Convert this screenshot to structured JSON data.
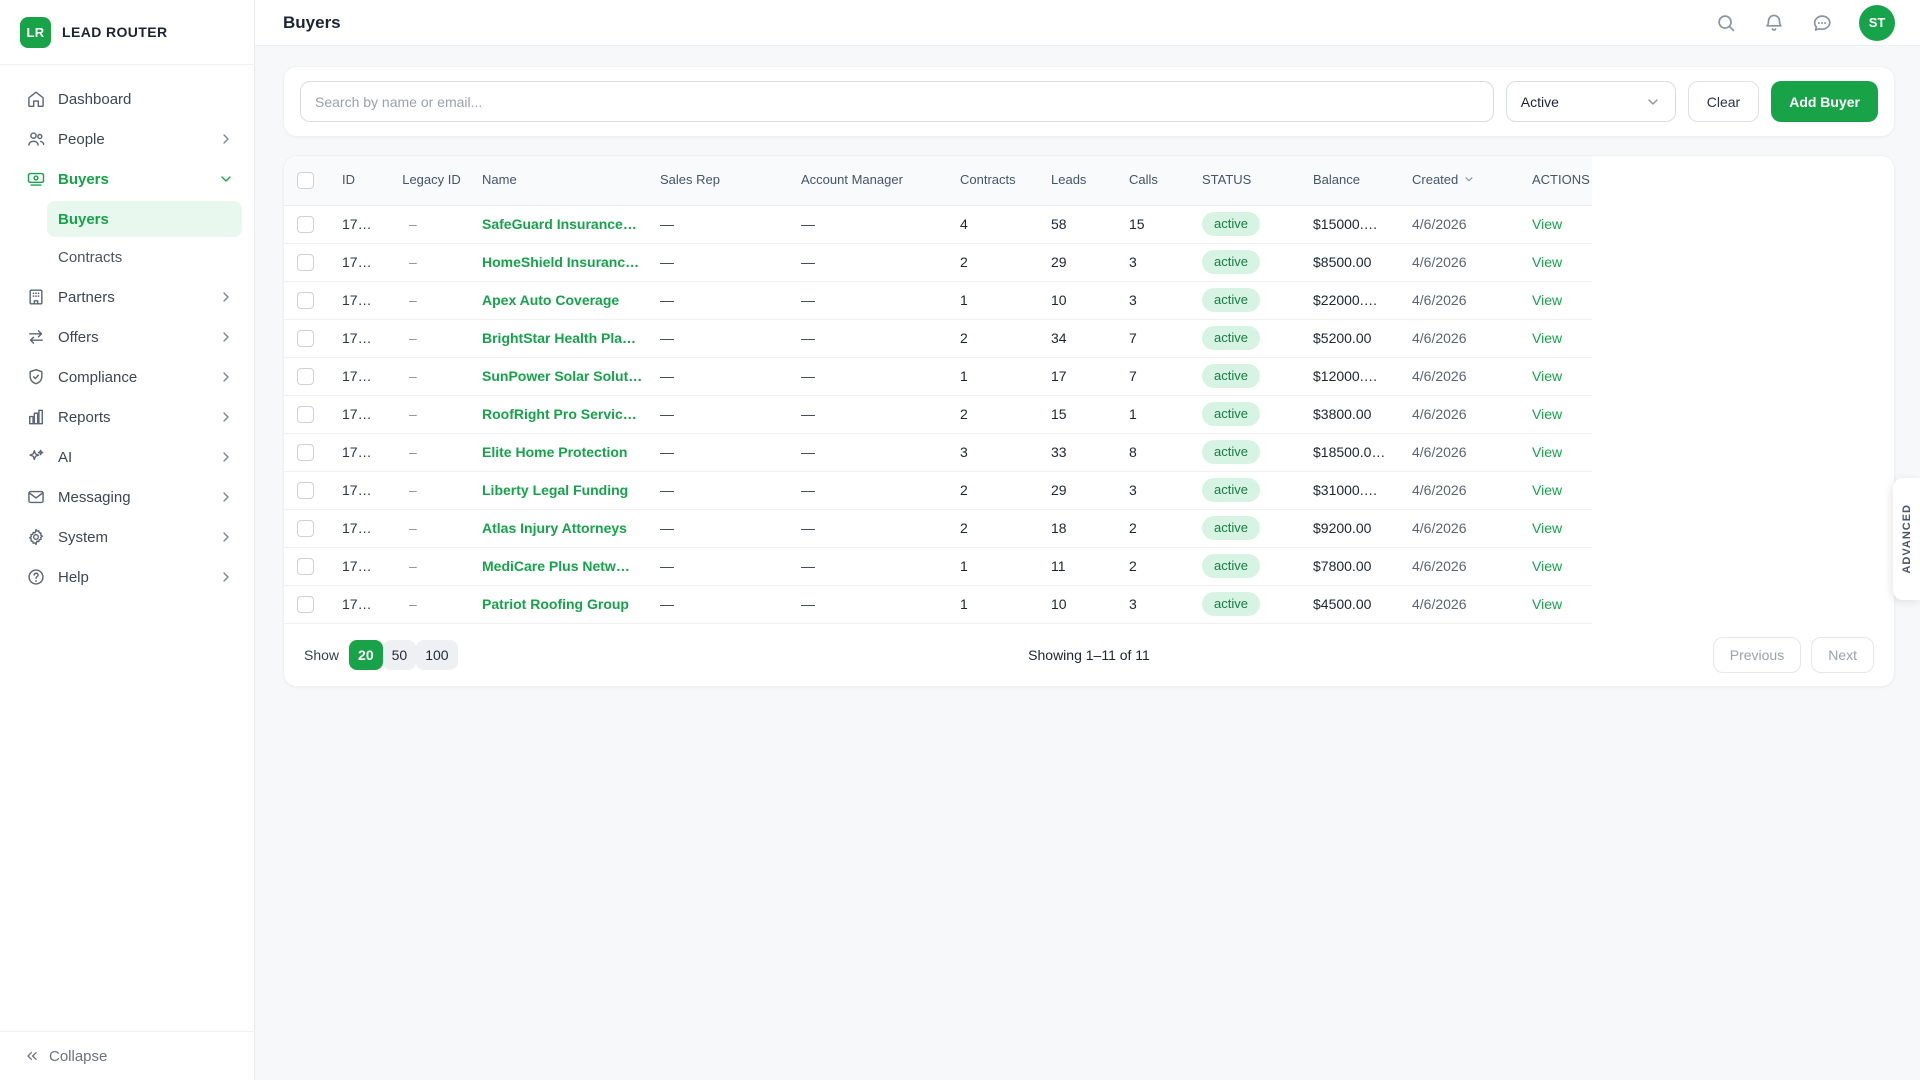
{
  "brand": {
    "logo": "LR",
    "name": "LEAD ROUTER"
  },
  "sidebar": {
    "items": [
      {
        "label": "Dashboard",
        "icon": "home",
        "chevron": "none",
        "active": false
      },
      {
        "label": "People",
        "icon": "users",
        "chevron": "right",
        "active": false
      },
      {
        "label": "Buyers",
        "icon": "cash",
        "chevron": "down",
        "active": true,
        "children": [
          {
            "label": "Buyers",
            "active": true
          },
          {
            "label": "Contracts",
            "active": false
          }
        ]
      },
      {
        "label": "Partners",
        "icon": "building",
        "chevron": "right",
        "active": false
      },
      {
        "label": "Offers",
        "icon": "arrows",
        "chevron": "right",
        "active": false
      },
      {
        "label": "Compliance",
        "icon": "shield",
        "chevron": "right",
        "active": false
      },
      {
        "label": "Reports",
        "icon": "chart",
        "chevron": "right",
        "active": false
      },
      {
        "label": "AI",
        "icon": "sparkles",
        "chevron": "right",
        "active": false
      },
      {
        "label": "Messaging",
        "icon": "mail",
        "chevron": "right",
        "active": false
      },
      {
        "label": "System",
        "icon": "gear",
        "chevron": "right",
        "active": false
      },
      {
        "label": "Help",
        "icon": "help",
        "chevron": "right",
        "active": false
      }
    ],
    "collapse_label": "Collapse"
  },
  "header": {
    "title": "Buyers",
    "avatar": "ST"
  },
  "filters": {
    "search_placeholder": "Search by name or email...",
    "status_value": "Active",
    "clear_label": "Clear",
    "add_buyer_label": "Add Buyer"
  },
  "table": {
    "columns": [
      "ID",
      "Legacy ID",
      "Name",
      "Sales Rep",
      "Account Manager",
      "Contracts",
      "Leads",
      "Calls",
      "STATUS",
      "Balance",
      "Created",
      "ACTIONS"
    ],
    "rows": [
      {
        "id": "17…",
        "legacy_id": "–",
        "name": "SafeGuard Insurance…",
        "sales_rep": "—",
        "account_manager": "—",
        "contracts": "4",
        "leads": "58",
        "calls": "15",
        "status": "active",
        "balance": "$15000.…",
        "created": "4/6/2026",
        "action": "View"
      },
      {
        "id": "17…",
        "legacy_id": "–",
        "name": "HomeShield Insuranc…",
        "sales_rep": "—",
        "account_manager": "—",
        "contracts": "2",
        "leads": "29",
        "calls": "3",
        "status": "active",
        "balance": "$8500.00",
        "created": "4/6/2026",
        "action": "View"
      },
      {
        "id": "17…",
        "legacy_id": "–",
        "name": "Apex Auto Coverage",
        "sales_rep": "—",
        "account_manager": "—",
        "contracts": "1",
        "leads": "10",
        "calls": "3",
        "status": "active",
        "balance": "$22000.…",
        "created": "4/6/2026",
        "action": "View"
      },
      {
        "id": "17…",
        "legacy_id": "–",
        "name": "BrightStar Health Pla…",
        "sales_rep": "—",
        "account_manager": "—",
        "contracts": "2",
        "leads": "34",
        "calls": "7",
        "status": "active",
        "balance": "$5200.00",
        "created": "4/6/2026",
        "action": "View"
      },
      {
        "id": "17…",
        "legacy_id": "–",
        "name": "SunPower Solar Solut…",
        "sales_rep": "—",
        "account_manager": "—",
        "contracts": "1",
        "leads": "17",
        "calls": "7",
        "status": "active",
        "balance": "$12000.…",
        "created": "4/6/2026",
        "action": "View"
      },
      {
        "id": "17…",
        "legacy_id": "–",
        "name": "RoofRight Pro Servic…",
        "sales_rep": "—",
        "account_manager": "—",
        "contracts": "2",
        "leads": "15",
        "calls": "1",
        "status": "active",
        "balance": "$3800.00",
        "created": "4/6/2026",
        "action": "View"
      },
      {
        "id": "17…",
        "legacy_id": "–",
        "name": "Elite Home Protection",
        "sales_rep": "—",
        "account_manager": "—",
        "contracts": "3",
        "leads": "33",
        "calls": "8",
        "status": "active",
        "balance": "$18500.0…",
        "created": "4/6/2026",
        "action": "View"
      },
      {
        "id": "17…",
        "legacy_id": "–",
        "name": "Liberty Legal Funding",
        "sales_rep": "—",
        "account_manager": "—",
        "contracts": "2",
        "leads": "29",
        "calls": "3",
        "status": "active",
        "balance": "$31000.…",
        "created": "4/6/2026",
        "action": "View"
      },
      {
        "id": "17…",
        "legacy_id": "–",
        "name": "Atlas Injury Attorneys",
        "sales_rep": "—",
        "account_manager": "—",
        "contracts": "2",
        "leads": "18",
        "calls": "2",
        "status": "active",
        "balance": "$9200.00",
        "created": "4/6/2026",
        "action": "View"
      },
      {
        "id": "17…",
        "legacy_id": "–",
        "name": "MediCare Plus Netw…",
        "sales_rep": "—",
        "account_manager": "—",
        "contracts": "1",
        "leads": "11",
        "calls": "2",
        "status": "active",
        "balance": "$7800.00",
        "created": "4/6/2026",
        "action": "View"
      },
      {
        "id": "17…",
        "legacy_id": "–",
        "name": "Patriot Roofing Group",
        "sales_rep": "—",
        "account_manager": "—",
        "contracts": "1",
        "leads": "10",
        "calls": "3",
        "status": "active",
        "balance": "$4500.00",
        "created": "4/6/2026",
        "action": "View"
      }
    ]
  },
  "pagination": {
    "show_label": "Show",
    "page_sizes": [
      "20",
      "50",
      "100"
    ],
    "active_size": "20",
    "summary": "Showing 1–11 of 11",
    "previous_label": "Previous",
    "next_label": "Next"
  },
  "advanced_tab_label": "ADVANCED",
  "colors": {
    "brand_green": "#18a348",
    "link_green": "#16a34a",
    "badge_bg": "#d7f3e3",
    "badge_text": "#177d41",
    "active_nav_bg": "#e9f8ef"
  }
}
